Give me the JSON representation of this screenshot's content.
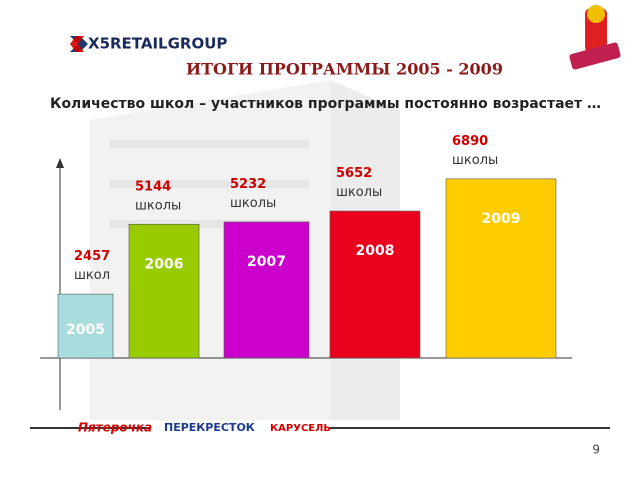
{
  "header": {
    "logo": "X5RETAILGROUP"
  },
  "chart_data": {
    "type": "bar",
    "title": "ИТОГИ ПРОГРАММЫ 2005 - 2009",
    "subtitle": "Количество школ – участников программы постоянно возрастает …",
    "categories": [
      "2005",
      "2006",
      "2007",
      "2008",
      "2009"
    ],
    "values": [
      2457,
      5144,
      5232,
      5652,
      6890
    ],
    "value_labels": [
      "2457 школ",
      "5144 школы",
      "5232 школы",
      "5652 школы",
      "6890 школы"
    ],
    "colors": [
      "#a9dcdc",
      "#99cc00",
      "#cc00cc",
      "#e8001c",
      "#ffcc00"
    ],
    "ylim": [
      0,
      8000
    ]
  },
  "footer": {
    "brands": [
      "Пятерочка",
      "ПЕРЕКРЕСТОК",
      "КАРУСЕЛЬ"
    ],
    "page_number": "9"
  }
}
